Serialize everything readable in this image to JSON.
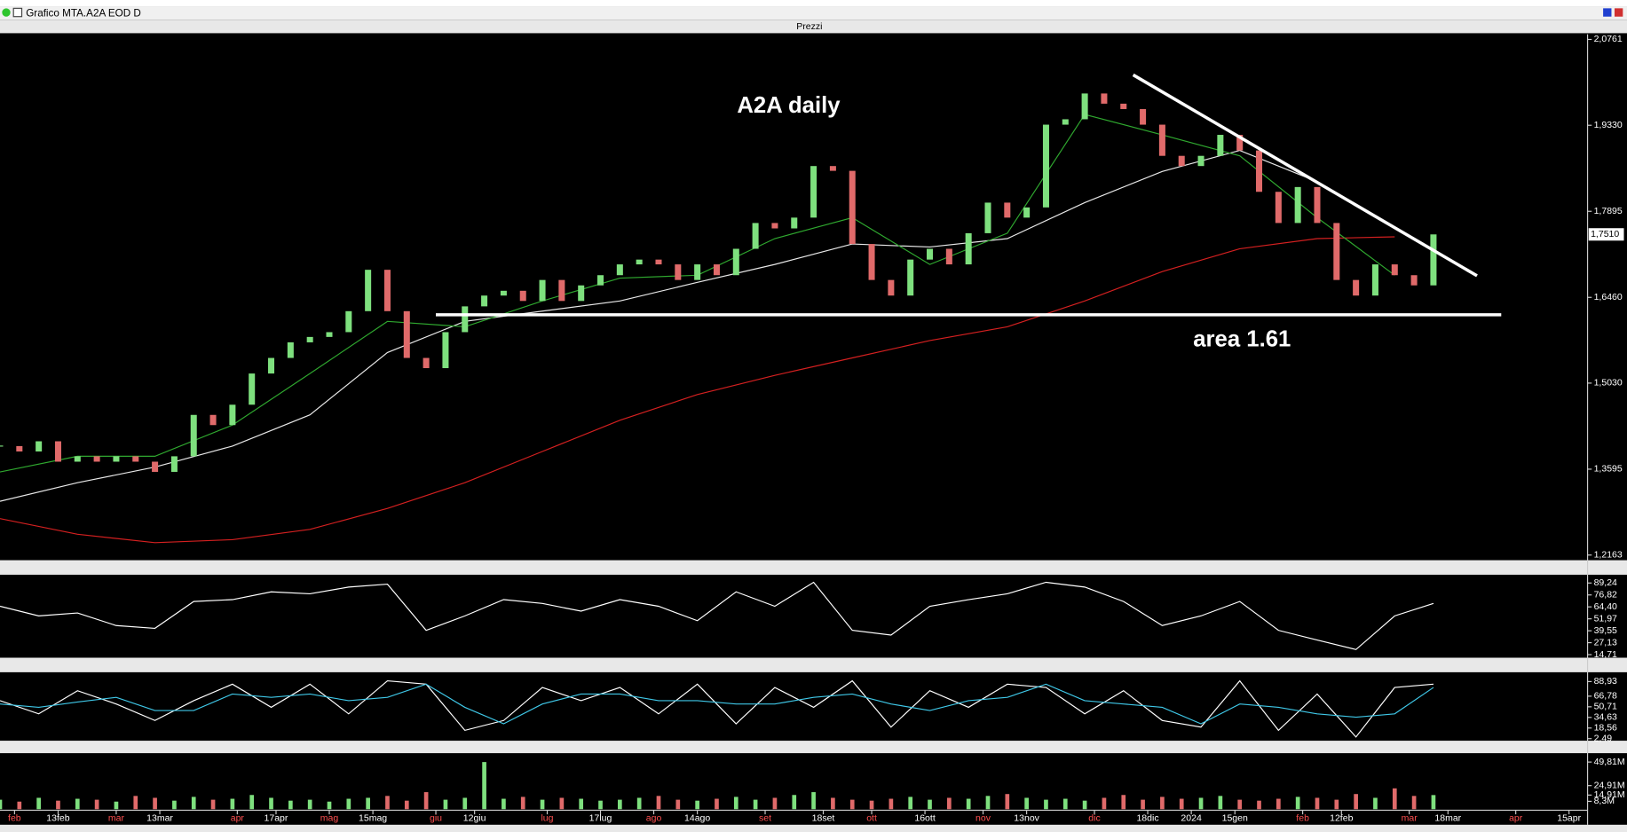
{
  "window": {
    "title": "Grafico MTA.A2A EOD D",
    "panel": "Prezzi"
  },
  "chart_data": [
    {
      "type": "candlestick",
      "annotations": [
        "A2A daily",
        "area 1.61"
      ],
      "xlim": [
        0,
        327.4
      ],
      "ylim": [
        1.2077,
        2.0848
      ],
      "yticks": [
        {
          "value": 2.0761,
          "label": "2,0761"
        },
        {
          "value": 1.933,
          "label": "1,9330"
        },
        {
          "value": 1.7895,
          "label": "1,7895"
        },
        {
          "value": 1.646,
          "label": "1,6460"
        },
        {
          "value": 1.503,
          "label": "1,5030"
        },
        {
          "value": 1.3595,
          "label": "1,3595"
        },
        {
          "value": 1.2163,
          "label": "1,2163"
        }
      ],
      "last_price": {
        "value": 1.751,
        "label": "1,7510"
      },
      "xticks": [
        {
          "value": 3,
          "label": "feb"
        },
        {
          "value": 12,
          "label": "13feb"
        },
        {
          "value": 24,
          "label": "mar"
        },
        {
          "value": 33,
          "label": "13mar"
        },
        {
          "value": 49,
          "label": "apr"
        },
        {
          "value": 57,
          "label": "17apr"
        },
        {
          "value": 68,
          "label": "mag"
        },
        {
          "value": 77,
          "label": "15mag"
        },
        {
          "value": 90,
          "label": "giu"
        },
        {
          "value": 98,
          "label": "12giu"
        },
        {
          "value": 113,
          "label": "lug"
        },
        {
          "value": 124,
          "label": "17lug"
        },
        {
          "value": 135,
          "label": "ago"
        },
        {
          "value": 144,
          "label": "14ago"
        },
        {
          "value": 158,
          "label": "set"
        },
        {
          "value": 170,
          "label": "18set"
        },
        {
          "value": 180,
          "label": "ott"
        },
        {
          "value": 191,
          "label": "16ott"
        },
        {
          "value": 203,
          "label": "nov"
        },
        {
          "value": 212,
          "label": "13nov"
        },
        {
          "value": 226,
          "label": "dic"
        },
        {
          "value": 237,
          "label": "18dic"
        },
        {
          "value": 246,
          "label": "2024"
        },
        {
          "value": 255,
          "label": "15gen"
        },
        {
          "value": 269,
          "label": "feb"
        },
        {
          "value": 277,
          "label": "12feb"
        },
        {
          "value": 291,
          "label": "mar"
        },
        {
          "value": 299,
          "label": "18mar"
        },
        {
          "value": 313,
          "label": "apr"
        },
        {
          "value": 324,
          "label": "15apr"
        }
      ],
      "x": [
        0,
        4,
        8,
        12,
        16,
        20,
        24,
        28,
        32,
        36,
        40,
        44,
        48,
        52,
        56,
        60,
        64,
        68,
        72,
        76,
        80,
        84,
        88,
        92,
        96,
        100,
        104,
        108,
        112,
        116,
        120,
        124,
        128,
        132,
        136,
        140,
        144,
        148,
        152,
        156,
        160,
        164,
        168,
        172,
        176,
        180,
        184,
        188,
        192,
        196,
        200,
        204,
        208,
        212,
        216,
        220,
        224,
        228,
        232,
        236,
        240,
        244,
        248,
        252,
        256,
        260,
        264,
        268,
        272,
        276,
        280,
        284,
        288,
        292,
        296
      ],
      "values": [
        1.398,
        1.389,
        1.406,
        1.372,
        1.381,
        1.372,
        1.381,
        1.372,
        1.355,
        1.381,
        1.45,
        1.433,
        1.467,
        1.519,
        1.545,
        1.571,
        1.58,
        1.588,
        1.623,
        1.692,
        1.623,
        1.545,
        1.528,
        1.588,
        1.631,
        1.649,
        1.657,
        1.64,
        1.675,
        1.64,
        1.666,
        1.683,
        1.701,
        1.709,
        1.701,
        1.675,
        1.701,
        1.683,
        1.727,
        1.77,
        1.761,
        1.779,
        1.865,
        1.857,
        1.735,
        1.675,
        1.649,
        1.709,
        1.727,
        1.701,
        1.753,
        1.804,
        1.779,
        1.796,
        1.934,
        1.943,
        1.986,
        1.969,
        1.96,
        1.934,
        1.882,
        1.865,
        1.882,
        1.917,
        1.891,
        1.822,
        1.77,
        1.83,
        1.77,
        1.675,
        1.649,
        1.701,
        1.683,
        1.666,
        1.751
      ],
      "up_color": "#7ee07e",
      "down_color": "#e06a6a",
      "series": [
        {
          "color": "#d42020",
          "x": [
            0,
            16,
            32,
            48,
            64,
            80,
            96,
            112,
            128,
            144,
            160,
            176,
            192,
            208,
            224,
            240,
            256,
            272,
            288
          ],
          "values": [
            1.277,
            1.251,
            1.237,
            1.242,
            1.259,
            1.294,
            1.337,
            1.389,
            1.441,
            1.484,
            1.516,
            1.545,
            1.574,
            1.597,
            1.64,
            1.689,
            1.727,
            1.744,
            1.747
          ]
        },
        {
          "color": "#e8e8e8",
          "x": [
            0,
            16,
            32,
            48,
            64,
            80,
            96,
            112,
            128,
            144,
            160,
            176,
            192,
            208,
            224,
            240,
            256,
            272,
            288
          ],
          "values": [
            1.306,
            1.337,
            1.363,
            1.398,
            1.45,
            1.554,
            1.606,
            1.623,
            1.64,
            1.671,
            1.701,
            1.735,
            1.73,
            1.744,
            1.804,
            1.856,
            1.891,
            1.839,
            1.761
          ]
        },
        {
          "color": "#2fa82f",
          "x": [
            0,
            16,
            32,
            48,
            64,
            80,
            96,
            112,
            128,
            144,
            160,
            176,
            192,
            208,
            224,
            240,
            256,
            272,
            288
          ],
          "values": [
            1.355,
            1.381,
            1.381,
            1.433,
            1.519,
            1.606,
            1.597,
            1.64,
            1.678,
            1.683,
            1.744,
            1.779,
            1.701,
            1.753,
            1.951,
            1.917,
            1.882,
            1.779,
            1.683
          ]
        }
      ],
      "lines": [
        {
          "color": "#ffffff",
          "x": [
            90,
            310
          ],
          "values": [
            1.617,
            1.617
          ]
        },
        {
          "color": "#ffffff",
          "x": [
            234,
            305
          ],
          "values": [
            2.017,
            1.682
          ]
        }
      ]
    },
    {
      "type": "line",
      "xlim": [
        0,
        327.4
      ],
      "ylim": [
        11.5,
        95.7
      ],
      "yticks": [
        {
          "value": 89.24,
          "label": "89,24"
        },
        {
          "value": 76.82,
          "label": "76,82"
        },
        {
          "value": 64.4,
          "label": "64,40"
        },
        {
          "value": 51.97,
          "label": "51,97"
        },
        {
          "value": 39.55,
          "label": "39,55"
        },
        {
          "value": 27.13,
          "label": "27,13"
        },
        {
          "value": 14.71,
          "label": "14,71"
        }
      ],
      "series": [
        {
          "color": "#ffffff",
          "x": [
            0,
            8,
            16,
            24,
            32,
            40,
            48,
            56,
            64,
            72,
            80,
            88,
            96,
            104,
            112,
            120,
            128,
            136,
            144,
            152,
            160,
            168,
            176,
            184,
            192,
            200,
            208,
            216,
            224,
            232,
            240,
            248,
            256,
            264,
            272,
            280,
            288,
            296
          ],
          "values": [
            65,
            55,
            58,
            45,
            42,
            70,
            72,
            80,
            78,
            85,
            88,
            40,
            55,
            72,
            68,
            60,
            72,
            65,
            50,
            80,
            65,
            90,
            40,
            35,
            65,
            72,
            78,
            90,
            85,
            70,
            45,
            55,
            70,
            40,
            30,
            20,
            55,
            68
          ]
        }
      ]
    },
    {
      "type": "line",
      "xlim": [
        0,
        327.4
      ],
      "ylim": [
        -0.65,
        99.9
      ],
      "yticks": [
        {
          "value": 88.93,
          "label": "88,93"
        },
        {
          "value": 66.78,
          "label": "66,78"
        },
        {
          "value": 50.71,
          "label": "50,71"
        },
        {
          "value": 34.63,
          "label": "34,63"
        },
        {
          "value": 18.56,
          "label": "18,56"
        },
        {
          "value": 2.49,
          "label": "2,49"
        }
      ],
      "series": [
        {
          "color": "#ffffff",
          "x": [
            0,
            8,
            16,
            24,
            32,
            40,
            48,
            56,
            64,
            72,
            80,
            88,
            96,
            104,
            112,
            120,
            128,
            136,
            144,
            152,
            160,
            168,
            176,
            184,
            192,
            200,
            208,
            216,
            224,
            232,
            240,
            248,
            256,
            264,
            272,
            280,
            288,
            296
          ],
          "values": [
            60,
            40,
            75,
            55,
            30,
            60,
            85,
            50,
            85,
            40,
            90,
            85,
            15,
            30,
            80,
            60,
            80,
            40,
            85,
            25,
            80,
            50,
            90,
            20,
            75,
            50,
            85,
            80,
            40,
            75,
            30,
            20,
            90,
            15,
            70,
            5,
            80,
            85
          ]
        },
        {
          "color": "#3fc8e8",
          "x": [
            0,
            8,
            16,
            24,
            32,
            40,
            48,
            56,
            64,
            72,
            80,
            88,
            96,
            104,
            112,
            120,
            128,
            136,
            144,
            152,
            160,
            168,
            176,
            184,
            192,
            200,
            208,
            216,
            224,
            232,
            240,
            248,
            256,
            264,
            272,
            280,
            288,
            296
          ],
          "values": [
            55,
            50,
            58,
            65,
            45,
            45,
            70,
            65,
            70,
            60,
            65,
            85,
            50,
            25,
            55,
            70,
            70,
            60,
            60,
            55,
            55,
            65,
            70,
            55,
            45,
            60,
            65,
            85,
            60,
            55,
            50,
            25,
            55,
            50,
            40,
            35,
            40,
            80
          ]
        }
      ]
    },
    {
      "type": "volume",
      "xlim": [
        0,
        327.4
      ],
      "ylim": [
        0,
        57
      ],
      "yticks": [
        {
          "value": 49.81,
          "label": "49,81M"
        },
        {
          "value": 24.91,
          "label": "24,91M"
        },
        {
          "value": 14.91,
          "label": "14,91M"
        },
        {
          "value": 8.3,
          "label": "8,3M"
        }
      ],
      "x": [
        0,
        4,
        8,
        12,
        16,
        20,
        24,
        28,
        32,
        36,
        40,
        44,
        48,
        52,
        56,
        60,
        64,
        68,
        72,
        76,
        80,
        84,
        88,
        92,
        96,
        100,
        104,
        108,
        112,
        116,
        120,
        124,
        128,
        132,
        136,
        140,
        144,
        148,
        152,
        156,
        160,
        164,
        168,
        172,
        176,
        180,
        184,
        188,
        192,
        196,
        200,
        204,
        208,
        212,
        216,
        220,
        224,
        228,
        232,
        236,
        240,
        244,
        248,
        252,
        256,
        260,
        264,
        268,
        272,
        276,
        280,
        284,
        288,
        292,
        296
      ],
      "values": [
        10,
        8,
        12,
        9,
        11,
        10,
        8,
        14,
        12,
        9,
        13,
        10,
        11,
        15,
        12,
        9,
        10,
        8,
        11,
        12,
        14,
        9,
        18,
        10,
        12,
        49.81,
        11,
        13,
        10,
        12,
        11,
        9,
        10,
        12,
        14,
        10,
        9,
        11,
        13,
        10,
        12,
        15,
        18,
        12,
        10,
        9,
        11,
        13,
        10,
        12,
        11,
        14,
        16,
        12,
        10,
        11,
        9,
        12,
        15,
        10,
        13,
        11,
        12,
        14,
        10,
        9,
        11,
        13,
        12,
        10,
        16,
        12,
        22,
        14,
        14.91
      ],
      "up_color": "#7ee07e",
      "down_color": "#e06a6a"
    }
  ]
}
